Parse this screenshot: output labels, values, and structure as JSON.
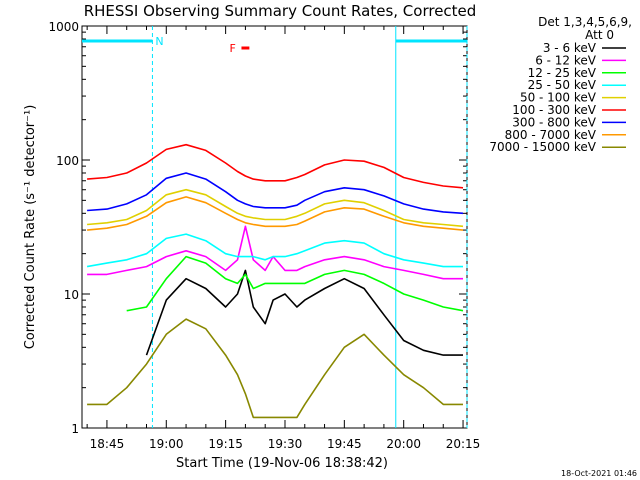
{
  "chart_data": {
    "type": "line",
    "title": "RHESSI Observing Summary Count Rates, Corrected",
    "xlabel": "Start Time (19-Nov-06 18:38:42)",
    "ylabel": "Corrected Count Rate (s⁻¹ detector⁻¹)",
    "y_scale": "log",
    "ylim": [
      1,
      1000
    ],
    "xlim": [
      "18:38:42",
      "20:16:00"
    ],
    "x_ticks": [
      "18:45",
      "19:00",
      "19:15",
      "19:30",
      "19:45",
      "20:00",
      "20:15"
    ],
    "y_ticks": [
      "1",
      "10",
      "100",
      "1000"
    ],
    "legend_header": [
      "Det 1,3,4,5,6,9,",
      "Att 0"
    ],
    "legend_position": "right",
    "flags": [
      {
        "label": "N",
        "start": "18:38:42",
        "end": "18:56:30",
        "color": "#00e5ff"
      },
      {
        "label": "",
        "start": "19:58:00",
        "end": "20:16:00",
        "color": "#00e5ff"
      },
      {
        "label": "F",
        "start": "19:19:00",
        "end": "19:21:00",
        "color": "#ff0000"
      }
    ],
    "night_boundaries": [
      "18:56:30",
      "19:58:00",
      "20:16:00"
    ],
    "x": [
      "18:40",
      "18:45",
      "18:50",
      "18:55",
      "19:00",
      "19:05",
      "19:10",
      "19:15",
      "19:18",
      "19:20",
      "19:22",
      "19:25",
      "19:27",
      "19:30",
      "19:33",
      "19:35",
      "19:40",
      "19:45",
      "19:50",
      "19:55",
      "20:00",
      "20:05",
      "20:10",
      "20:15"
    ],
    "series": [
      {
        "name": "3 - 6 keV",
        "color": "#000000",
        "values": [
          null,
          null,
          null,
          3.5,
          9,
          13,
          11,
          8,
          10,
          15,
          8,
          6,
          9,
          10,
          8,
          9,
          11,
          13,
          11,
          7,
          4.5,
          3.8,
          3.5,
          3.5
        ]
      },
      {
        "name": "6 - 12 keV",
        "color": "#ff00ff",
        "values": [
          14,
          14,
          15,
          16,
          19,
          21,
          19,
          15,
          18,
          32,
          18,
          15,
          19,
          15,
          15,
          16,
          18,
          19,
          18,
          16,
          15,
          14,
          13,
          13
        ]
      },
      {
        "name": "12 - 25 keV",
        "color": "#00ff00",
        "values": [
          null,
          null,
          7.5,
          8,
          13,
          19,
          17,
          13,
          12,
          14,
          11,
          12,
          12,
          12,
          12,
          12,
          14,
          15,
          14,
          12,
          10,
          9,
          8,
          7.5
        ]
      },
      {
        "name": "25 - 50 keV",
        "color": "#00ffff",
        "values": [
          16,
          17,
          18,
          20,
          26,
          28,
          25,
          20,
          19,
          19,
          19,
          18,
          19,
          19,
          20,
          21,
          24,
          25,
          24,
          20,
          18,
          17,
          16,
          16
        ]
      },
      {
        "name": "50 - 100 keV",
        "color": "#e0d000",
        "values": [
          33,
          34,
          36,
          42,
          55,
          60,
          55,
          45,
          40,
          38,
          37,
          36,
          36,
          36,
          38,
          40,
          47,
          50,
          48,
          42,
          36,
          34,
          33,
          32
        ]
      },
      {
        "name": "100 - 300 keV",
        "color": "#ff0000",
        "values": [
          72,
          74,
          80,
          95,
          120,
          130,
          118,
          95,
          82,
          76,
          72,
          70,
          70,
          70,
          74,
          78,
          92,
          100,
          98,
          88,
          74,
          68,
          64,
          62
        ]
      },
      {
        "name": "300 - 800 keV",
        "color": "#0000ff",
        "values": [
          42,
          43,
          47,
          55,
          73,
          80,
          72,
          58,
          50,
          47,
          45,
          44,
          44,
          44,
          46,
          50,
          58,
          62,
          60,
          54,
          47,
          43,
          41,
          40
        ]
      },
      {
        "name": "800 - 7000 keV",
        "color": "#ff9900",
        "values": [
          30,
          31,
          33,
          38,
          48,
          53,
          48,
          40,
          36,
          34,
          33,
          32,
          32,
          32,
          33,
          35,
          41,
          44,
          43,
          38,
          34,
          32,
          31,
          30
        ]
      },
      {
        "name": "7000 - 15000 keV",
        "color": "#888800",
        "values": [
          1.5,
          1.5,
          2,
          3,
          5,
          6.5,
          5.5,
          3.5,
          2.5,
          1.8,
          1.2,
          1.2,
          1.2,
          1.2,
          1.2,
          1.5,
          2.5,
          4,
          5,
          3.5,
          2.5,
          2,
          1.5,
          1.5
        ]
      }
    ]
  },
  "footer_timestamp": "18-Oct-2021 01:46"
}
